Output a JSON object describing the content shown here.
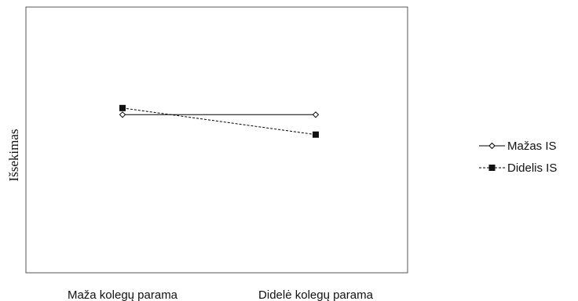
{
  "chart_data": {
    "type": "line",
    "title": "",
    "xlabel": "",
    "ylabel": "Išsekimas",
    "categories": [
      "Maža kolegų parama",
      "Didelė kolegų parama"
    ],
    "ylim": [
      0,
      100
    ],
    "grid": false,
    "legend_position": "right",
    "series": [
      {
        "name": "Mažas IS",
        "values": [
          59.5,
          59.5
        ],
        "line_style": "solid",
        "marker": "open-diamond",
        "color": "#000000"
      },
      {
        "name": "Didelis IS",
        "values": [
          62.0,
          52.0
        ],
        "line_style": "dashed",
        "marker": "filled-square",
        "color": "#000000"
      }
    ]
  }
}
